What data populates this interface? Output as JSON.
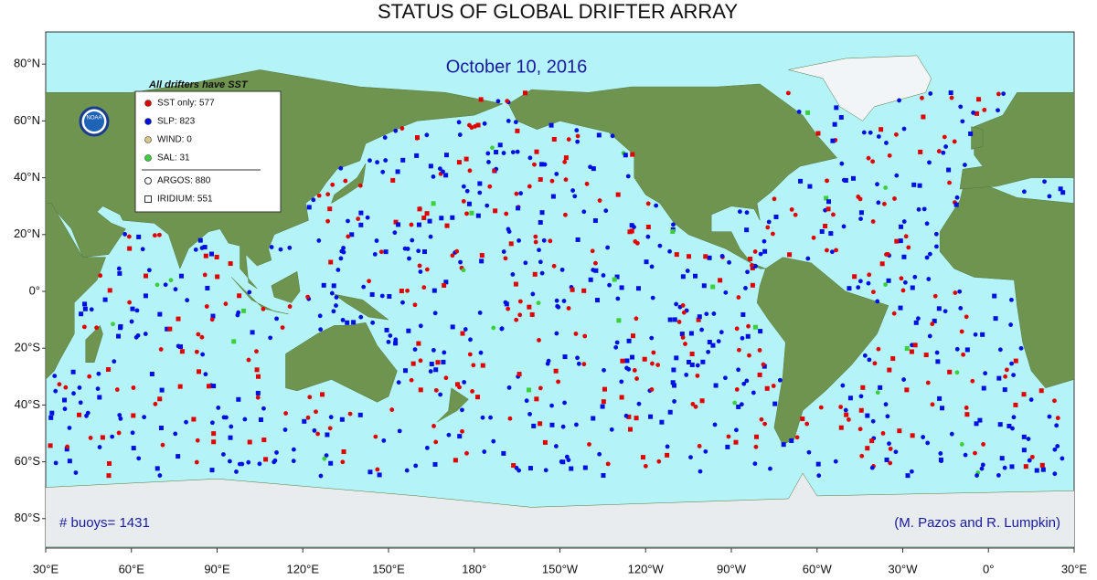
{
  "title": "STATUS OF GLOBAL DRIFTER ARRAY",
  "date": "October 10, 2016",
  "legend": {
    "heading": "All drifters have SST",
    "items": [
      {
        "label": "SST only: 577",
        "color": "#e00000"
      },
      {
        "label": "SLP: 823",
        "color": "#0010e0"
      },
      {
        "label": "WIND: 0",
        "color": "#d8c88a"
      },
      {
        "label": "SAL: 31",
        "color": "#3ccf3c"
      },
      {
        "label": "ARGOS: 880",
        "marker": "circle"
      },
      {
        "label": "IRIDIUM: 551",
        "marker": "square"
      }
    ]
  },
  "logo": "NOAA",
  "buoy_count": "# buoys= 1431",
  "credit": "(M. Pazos and R. Lumpkin)",
  "lat_labels": [
    "80°N",
    "60°N",
    "40°N",
    "20°N",
    "0°",
    "20°S",
    "40°S",
    "60°S",
    "80°S"
  ],
  "lon_labels": [
    "30°E",
    "60°E",
    "90°E",
    "120°E",
    "150°E",
    "180°",
    "150°W",
    "120°W",
    "90°W",
    "60°W",
    "30°W",
    "0°",
    "30°E"
  ]
}
